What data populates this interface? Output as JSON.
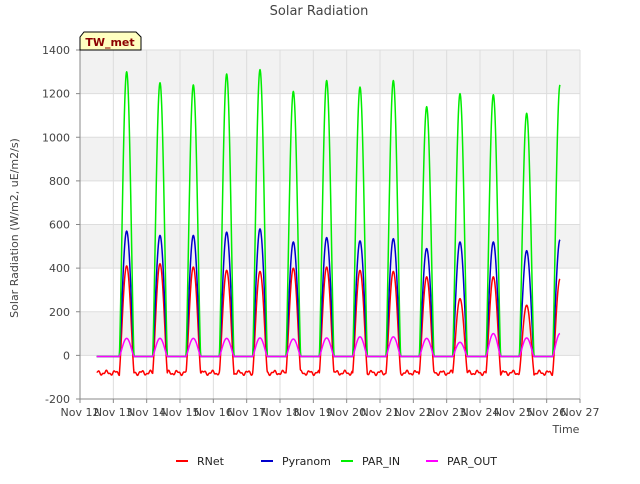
{
  "chart_data": {
    "type": "line",
    "title": "Solar Radiation",
    "xlabel": "Time",
    "ylabel": "Solar Radiation (W/m2, uE/m2/s)",
    "badge": "TW_met",
    "ylim": [
      -200,
      1400
    ],
    "yticks": [
      -200,
      0,
      200,
      400,
      600,
      800,
      1000,
      1200,
      1400
    ],
    "xlim": [
      12,
      27
    ],
    "xticks": [
      {
        "x": 12,
        "label": "Nov 12"
      },
      {
        "x": 13,
        "label": "Nov 13"
      },
      {
        "x": 14,
        "label": "Nov 14"
      },
      {
        "x": 15,
        "label": "Nov 15"
      },
      {
        "x": 16,
        "label": "Nov 16"
      },
      {
        "x": 17,
        "label": "Nov 17"
      },
      {
        "x": 18,
        "label": "Nov 18"
      },
      {
        "x": 19,
        "label": "Nov 19"
      },
      {
        "x": 20,
        "label": "Nov 20"
      },
      {
        "x": 21,
        "label": "Nov 21"
      },
      {
        "x": 22,
        "label": "Nov 22"
      },
      {
        "x": 23,
        "label": "Nov 23"
      },
      {
        "x": 24,
        "label": "Nov 24"
      },
      {
        "x": 25,
        "label": "Nov 25"
      },
      {
        "x": 26,
        "label": "Nov 26"
      },
      {
        "x": 27,
        "label": "Nov 27"
      }
    ],
    "grid": true,
    "legend_position": "bottom",
    "time_range": [
      12.5,
      26.4
    ],
    "day_peak_times": [
      13.4,
      14.4,
      15.4,
      16.4,
      17.4,
      18.4,
      19.4,
      20.4,
      21.4,
      22.4,
      23.4,
      24.4,
      25.4,
      26.4
    ],
    "series": [
      {
        "name": "RNet",
        "color": "#ff0000",
        "night_value": -80,
        "peaks": [
          410,
          420,
          405,
          390,
          385,
          400,
          405,
          390,
          385,
          360,
          260,
          360,
          230,
          350
        ]
      },
      {
        "name": "Pyranom",
        "color": "#0000cc",
        "night_value": -5,
        "peaks": [
          570,
          550,
          550,
          565,
          580,
          520,
          540,
          525,
          535,
          490,
          520,
          520,
          480,
          530
        ]
      },
      {
        "name": "PAR_IN",
        "color": "#00ee00",
        "night_value": -5,
        "peaks": [
          1300,
          1250,
          1240,
          1290,
          1310,
          1210,
          1260,
          1230,
          1260,
          1140,
          1200,
          1195,
          1110,
          1240
        ]
      },
      {
        "name": "PAR_OUT",
        "color": "#ff00ff",
        "night_value": -5,
        "peaks": [
          78,
          78,
          78,
          78,
          80,
          75,
          80,
          85,
          85,
          78,
          60,
          100,
          80,
          100
        ]
      }
    ]
  }
}
